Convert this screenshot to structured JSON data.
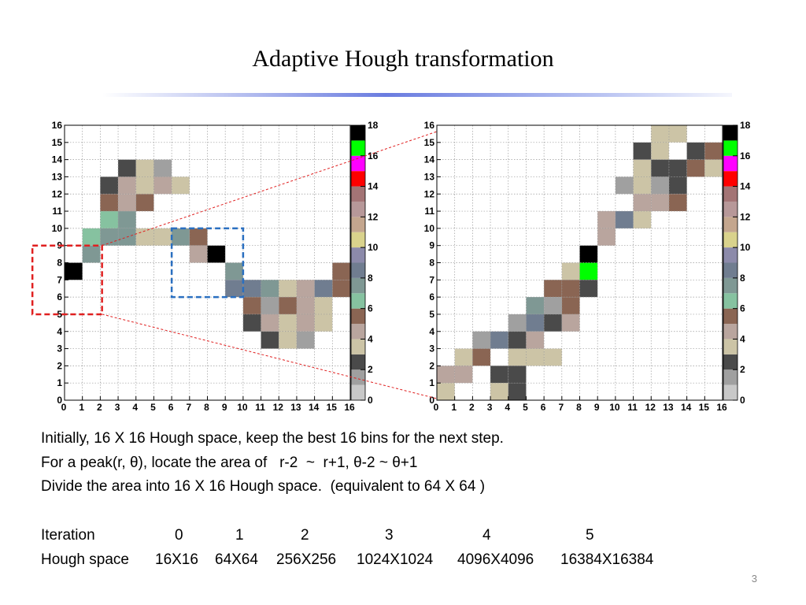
{
  "title": "Adaptive Hough transformation",
  "page_number": "3",
  "body_lines": [
    "Initially, 16 X 16 Hough space, keep the best 16 bins for the next step.",
    "For a peak(r, θ), locate the area of   r-2  ~  r+1, θ-2 ~ θ+1",
    "Divide the area into 16 X 16 Hough space.  (equivalent to 64 X 64 )"
  ],
  "iteration_table": {
    "row_labels": [
      "Iteration",
      "Hough space"
    ],
    "iterations": [
      "0",
      "1",
      "2",
      "3",
      "4",
      "5"
    ],
    "sizes": [
      "16X16",
      "64X64",
      "256X256",
      "1024X1024",
      "4096X4096",
      "16384X16384"
    ]
  },
  "chart_data": [
    {
      "type": "heatmap",
      "x_ticks": [
        0,
        1,
        2,
        3,
        4,
        5,
        6,
        7,
        8,
        9,
        10,
        11,
        12,
        13,
        14,
        15,
        16
      ],
      "y_ticks": [
        0,
        1,
        2,
        3,
        4,
        5,
        6,
        7,
        8,
        9,
        10,
        11,
        12,
        13,
        14,
        15,
        16
      ],
      "xlim": [
        0,
        16
      ],
      "ylim": [
        0,
        16
      ],
      "grid": true,
      "colorbar": {
        "ticks": [
          0,
          2,
          4,
          6,
          8,
          10,
          12,
          14,
          16,
          18
        ],
        "range": [
          0,
          18
        ],
        "placement": "right"
      },
      "cells": [
        [
          0,
          7,
          18
        ],
        [
          1,
          8,
          8
        ],
        [
          1,
          9,
          7
        ],
        [
          2,
          9,
          8
        ],
        [
          3,
          9,
          8
        ],
        [
          2,
          10,
          7
        ],
        [
          3,
          10,
          8
        ],
        [
          2,
          11,
          6
        ],
        [
          3,
          11,
          5
        ],
        [
          4,
          11,
          6
        ],
        [
          2,
          12,
          3
        ],
        [
          3,
          12,
          5
        ],
        [
          4,
          12,
          4
        ],
        [
          5,
          12,
          5
        ],
        [
          6,
          12,
          4
        ],
        [
          3,
          13,
          3
        ],
        [
          4,
          13,
          4
        ],
        [
          5,
          13,
          2
        ],
        [
          4,
          9,
          4
        ],
        [
          5,
          9,
          4
        ],
        [
          6,
          9,
          8
        ],
        [
          7,
          9,
          6
        ],
        [
          7,
          8,
          5
        ],
        [
          8,
          8,
          18
        ],
        [
          9,
          7,
          8
        ],
        [
          9,
          6,
          9
        ],
        [
          10,
          6,
          9
        ],
        [
          11,
          6,
          8
        ],
        [
          12,
          6,
          4
        ],
        [
          13,
          6,
          5
        ],
        [
          14,
          6,
          9
        ],
        [
          15,
          6,
          6
        ],
        [
          15,
          7,
          6
        ],
        [
          10,
          5,
          6
        ],
        [
          11,
          5,
          2
        ],
        [
          12,
          5,
          6
        ],
        [
          13,
          5,
          5
        ],
        [
          14,
          5,
          4
        ],
        [
          10,
          4,
          3
        ],
        [
          11,
          4,
          5
        ],
        [
          12,
          4,
          4
        ],
        [
          13,
          4,
          5
        ],
        [
          14,
          4,
          4
        ],
        [
          11,
          3,
          3
        ],
        [
          12,
          3,
          4
        ],
        [
          13,
          3,
          2
        ]
      ],
      "highlight_boxes": [
        {
          "x": [
            -1.8,
            2.1
          ],
          "y": [
            5,
            9
          ],
          "color": "#e02020"
        },
        {
          "x": [
            6,
            10
          ],
          "y": [
            6,
            10
          ],
          "color": "#2a6fc0"
        }
      ]
    },
    {
      "type": "heatmap",
      "x_ticks": [
        0,
        1,
        2,
        3,
        4,
        5,
        6,
        7,
        8,
        9,
        10,
        11,
        12,
        13,
        14,
        15,
        16
      ],
      "y_ticks": [
        0,
        1,
        2,
        3,
        4,
        5,
        6,
        7,
        8,
        9,
        10,
        11,
        12,
        13,
        14,
        15,
        16
      ],
      "xlim": [
        0,
        16
      ],
      "ylim": [
        0,
        16
      ],
      "grid": true,
      "colorbar": {
        "ticks": [
          0,
          2,
          4,
          6,
          8,
          10,
          12,
          14,
          16,
          18
        ],
        "range": [
          0,
          18
        ],
        "placement": "right"
      },
      "cells": [
        [
          12,
          15,
          4
        ],
        [
          13,
          15,
          4
        ],
        [
          11,
          14,
          3
        ],
        [
          12,
          14,
          4
        ],
        [
          13,
          14,
          0
        ],
        [
          14,
          14,
          3
        ],
        [
          15,
          14,
          6
        ],
        [
          11,
          13,
          4
        ],
        [
          12,
          13,
          3
        ],
        [
          13,
          13,
          3
        ],
        [
          14,
          13,
          6
        ],
        [
          15,
          13,
          4
        ],
        [
          10,
          12,
          2
        ],
        [
          11,
          12,
          4
        ],
        [
          12,
          12,
          2
        ],
        [
          13,
          12,
          3
        ],
        [
          11,
          11,
          5
        ],
        [
          12,
          11,
          5
        ],
        [
          13,
          11,
          6
        ],
        [
          9,
          10,
          5
        ],
        [
          10,
          10,
          9
        ],
        [
          11,
          10,
          4
        ],
        [
          9,
          9,
          5
        ],
        [
          8,
          8,
          18
        ],
        [
          7,
          7,
          4
        ],
        [
          8,
          7,
          17
        ],
        [
          6,
          6,
          6
        ],
        [
          7,
          6,
          6
        ],
        [
          8,
          6,
          3
        ],
        [
          5,
          5,
          8
        ],
        [
          6,
          5,
          2
        ],
        [
          7,
          5,
          6
        ],
        [
          4,
          4,
          2
        ],
        [
          5,
          4,
          9
        ],
        [
          6,
          4,
          3
        ],
        [
          7,
          4,
          5
        ],
        [
          2,
          3,
          2
        ],
        [
          3,
          3,
          9
        ],
        [
          4,
          3,
          3
        ],
        [
          5,
          3,
          5
        ],
        [
          1,
          2,
          4
        ],
        [
          2,
          2,
          6
        ],
        [
          4,
          2,
          4
        ],
        [
          5,
          2,
          4
        ],
        [
          6,
          2,
          4
        ],
        [
          0,
          1,
          5
        ],
        [
          1,
          1,
          5
        ],
        [
          3,
          1,
          3
        ],
        [
          4,
          1,
          3
        ],
        [
          0,
          0,
          4
        ],
        [
          3,
          0,
          4
        ],
        [
          4,
          0,
          3
        ]
      ]
    }
  ],
  "zoom_lines_color": "#e02020",
  "palette": [
    "#ffffff",
    "#c8c8c8",
    "#a0a0a0",
    "#4a4a4a",
    "#ccc4a6",
    "#b9a59e",
    "#8a6553",
    "#86c2a0",
    "#7f9894",
    "#707d90",
    "#8c8aaa",
    "#d9d28c",
    "#c4a68e",
    "#b79899",
    "#a37475",
    "#ff0000",
    "#ff00ff",
    "#00ff00",
    "#000000"
  ]
}
